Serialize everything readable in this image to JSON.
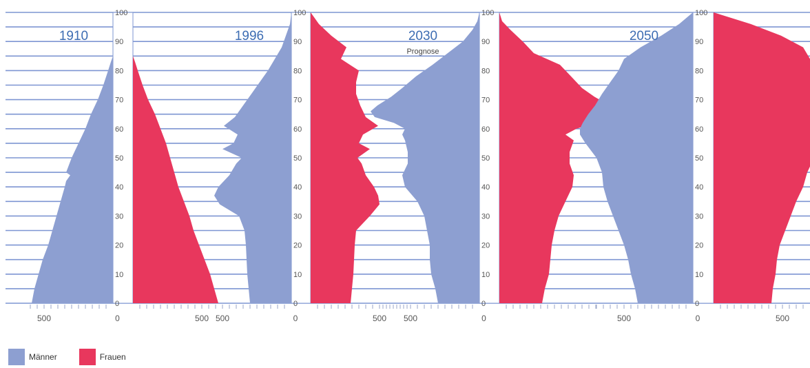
{
  "colors": {
    "male": "#8d9fd1",
    "female": "#e8375d",
    "title": "#3d6db3",
    "grid": "#7d95d2",
    "text": "#555555"
  },
  "legend": {
    "male_label": "Männer",
    "female_label": "Frauen"
  },
  "chart_data": [
    {
      "type": "area",
      "title": "1910",
      "subtitle": "",
      "age_ticks": [
        "0",
        "10",
        "20",
        "30",
        "40",
        "50",
        "60",
        "70",
        "80",
        "90",
        "100"
      ],
      "x_tick_labels": [
        "500",
        "0",
        "500"
      ],
      "series": [
        {
          "name": "Männer",
          "ages": [
            0,
            5,
            10,
            15,
            20,
            25,
            30,
            35,
            40,
            42,
            44,
            45,
            50,
            55,
            60,
            65,
            70,
            75,
            80,
            83,
            85
          ],
          "values": [
            590,
            570,
            540,
            510,
            470,
            440,
            410,
            380,
            350,
            340,
            310,
            340,
            300,
            250,
            200,
            160,
            110,
            70,
            35,
            15,
            0
          ]
        },
        {
          "name": "Frauen",
          "ages": [
            0,
            5,
            10,
            15,
            20,
            25,
            30,
            35,
            40,
            45,
            50,
            55,
            60,
            65,
            70,
            75,
            80,
            83,
            85
          ],
          "values": [
            620,
            590,
            560,
            520,
            480,
            440,
            410,
            370,
            330,
            300,
            270,
            240,
            200,
            160,
            110,
            70,
            35,
            15,
            0
          ]
        }
      ]
    },
    {
      "type": "area",
      "title": "1996",
      "subtitle": "",
      "age_ticks": [
        "0",
        "10",
        "20",
        "30",
        "40",
        "50",
        "60",
        "70",
        "80",
        "90",
        "100"
      ],
      "x_tick_labels": [
        "500",
        "0",
        "500"
      ],
      "series": [
        {
          "name": "Männer",
          "ages": [
            0,
            5,
            10,
            15,
            20,
            25,
            30,
            34,
            37,
            40,
            44,
            48,
            50,
            53,
            55,
            58,
            61,
            64,
            68,
            72,
            76,
            80,
            84,
            88,
            92,
            96,
            100
          ],
          "values": [
            300,
            310,
            320,
            325,
            330,
            340,
            380,
            520,
            560,
            530,
            450,
            400,
            360,
            500,
            420,
            390,
            490,
            410,
            350,
            290,
            230,
            170,
            120,
            70,
            40,
            10,
            0
          ]
        },
        {
          "name": "Frauen",
          "ages": [
            0,
            5,
            10,
            15,
            20,
            25,
            30,
            34,
            37,
            40,
            44,
            48,
            50,
            53,
            55,
            58,
            61,
            64,
            68,
            72,
            76,
            80,
            84,
            88,
            92,
            96,
            100
          ],
          "values": [
            290,
            300,
            310,
            315,
            320,
            330,
            430,
            500,
            490,
            460,
            400,
            370,
            340,
            430,
            350,
            380,
            490,
            400,
            360,
            330,
            330,
            350,
            220,
            260,
            150,
            60,
            0
          ]
        }
      ]
    },
    {
      "type": "area",
      "title": "2030",
      "subtitle": "Prognose",
      "age_ticks": [
        "0",
        "10",
        "20",
        "30",
        "40",
        "50",
        "60",
        "70",
        "80",
        "90",
        "100"
      ],
      "x_tick_labels": [
        "500",
        "0"
      ],
      "series": [
        {
          "name": "Männer",
          "ages": [
            0,
            5,
            10,
            15,
            20,
            25,
            30,
            35,
            40,
            44,
            48,
            52,
            56,
            58,
            60,
            62,
            64,
            66,
            68,
            71,
            74,
            78,
            82,
            86,
            90,
            94,
            97,
            100
          ],
          "values": [
            300,
            320,
            350,
            360,
            360,
            380,
            400,
            450,
            540,
            560,
            520,
            520,
            540,
            560,
            540,
            620,
            760,
            790,
            740,
            640,
            560,
            460,
            340,
            230,
            120,
            50,
            15,
            0
          ]
        },
        {
          "name": "Frauen",
          "ages": [
            0,
            5,
            10,
            15,
            20,
            25,
            30,
            35,
            40,
            44,
            48,
            52,
            56,
            58,
            60,
            62,
            64,
            66,
            68,
            71,
            74,
            78,
            82,
            86,
            90,
            94,
            97,
            100
          ],
          "values": [
            310,
            330,
            360,
            370,
            380,
            400,
            430,
            480,
            530,
            540,
            510,
            510,
            540,
            480,
            560,
            700,
            820,
            850,
            800,
            690,
            600,
            520,
            440,
            250,
            170,
            80,
            20,
            0
          ]
        }
      ]
    },
    {
      "type": "area",
      "title": "2050",
      "subtitle": "",
      "age_ticks": [
        "0",
        "10",
        "20",
        "30",
        "40",
        "50",
        "60",
        "70",
        "80",
        "90",
        "100"
      ],
      "x_tick_labels": [
        "500",
        "0",
        "500"
      ],
      "series": [
        {
          "name": "Männer",
          "ages": [
            0,
            5,
            10,
            15,
            20,
            25,
            30,
            35,
            40,
            45,
            50,
            55,
            58,
            60,
            62,
            65,
            68,
            72,
            76,
            80,
            84,
            88,
            92,
            96,
            100
          ],
          "values": [
            400,
            420,
            450,
            470,
            500,
            540,
            580,
            620,
            650,
            660,
            700,
            780,
            820,
            820,
            800,
            760,
            710,
            660,
            600,
            540,
            500,
            380,
            230,
            100,
            0
          ]
        },
        {
          "name": "Frauen",
          "ages": [
            0,
            5,
            10,
            15,
            20,
            25,
            30,
            35,
            40,
            45,
            50,
            55,
            58,
            60,
            62,
            65,
            68,
            72,
            76,
            80,
            84,
            88,
            92,
            96,
            100
          ],
          "values": [
            420,
            430,
            450,
            460,
            480,
            520,
            560,
            600,
            650,
            680,
            730,
            760,
            770,
            770,
            760,
            740,
            720,
            720,
            700,
            700,
            700,
            650,
            490,
            270,
            0
          ]
        }
      ]
    }
  ]
}
